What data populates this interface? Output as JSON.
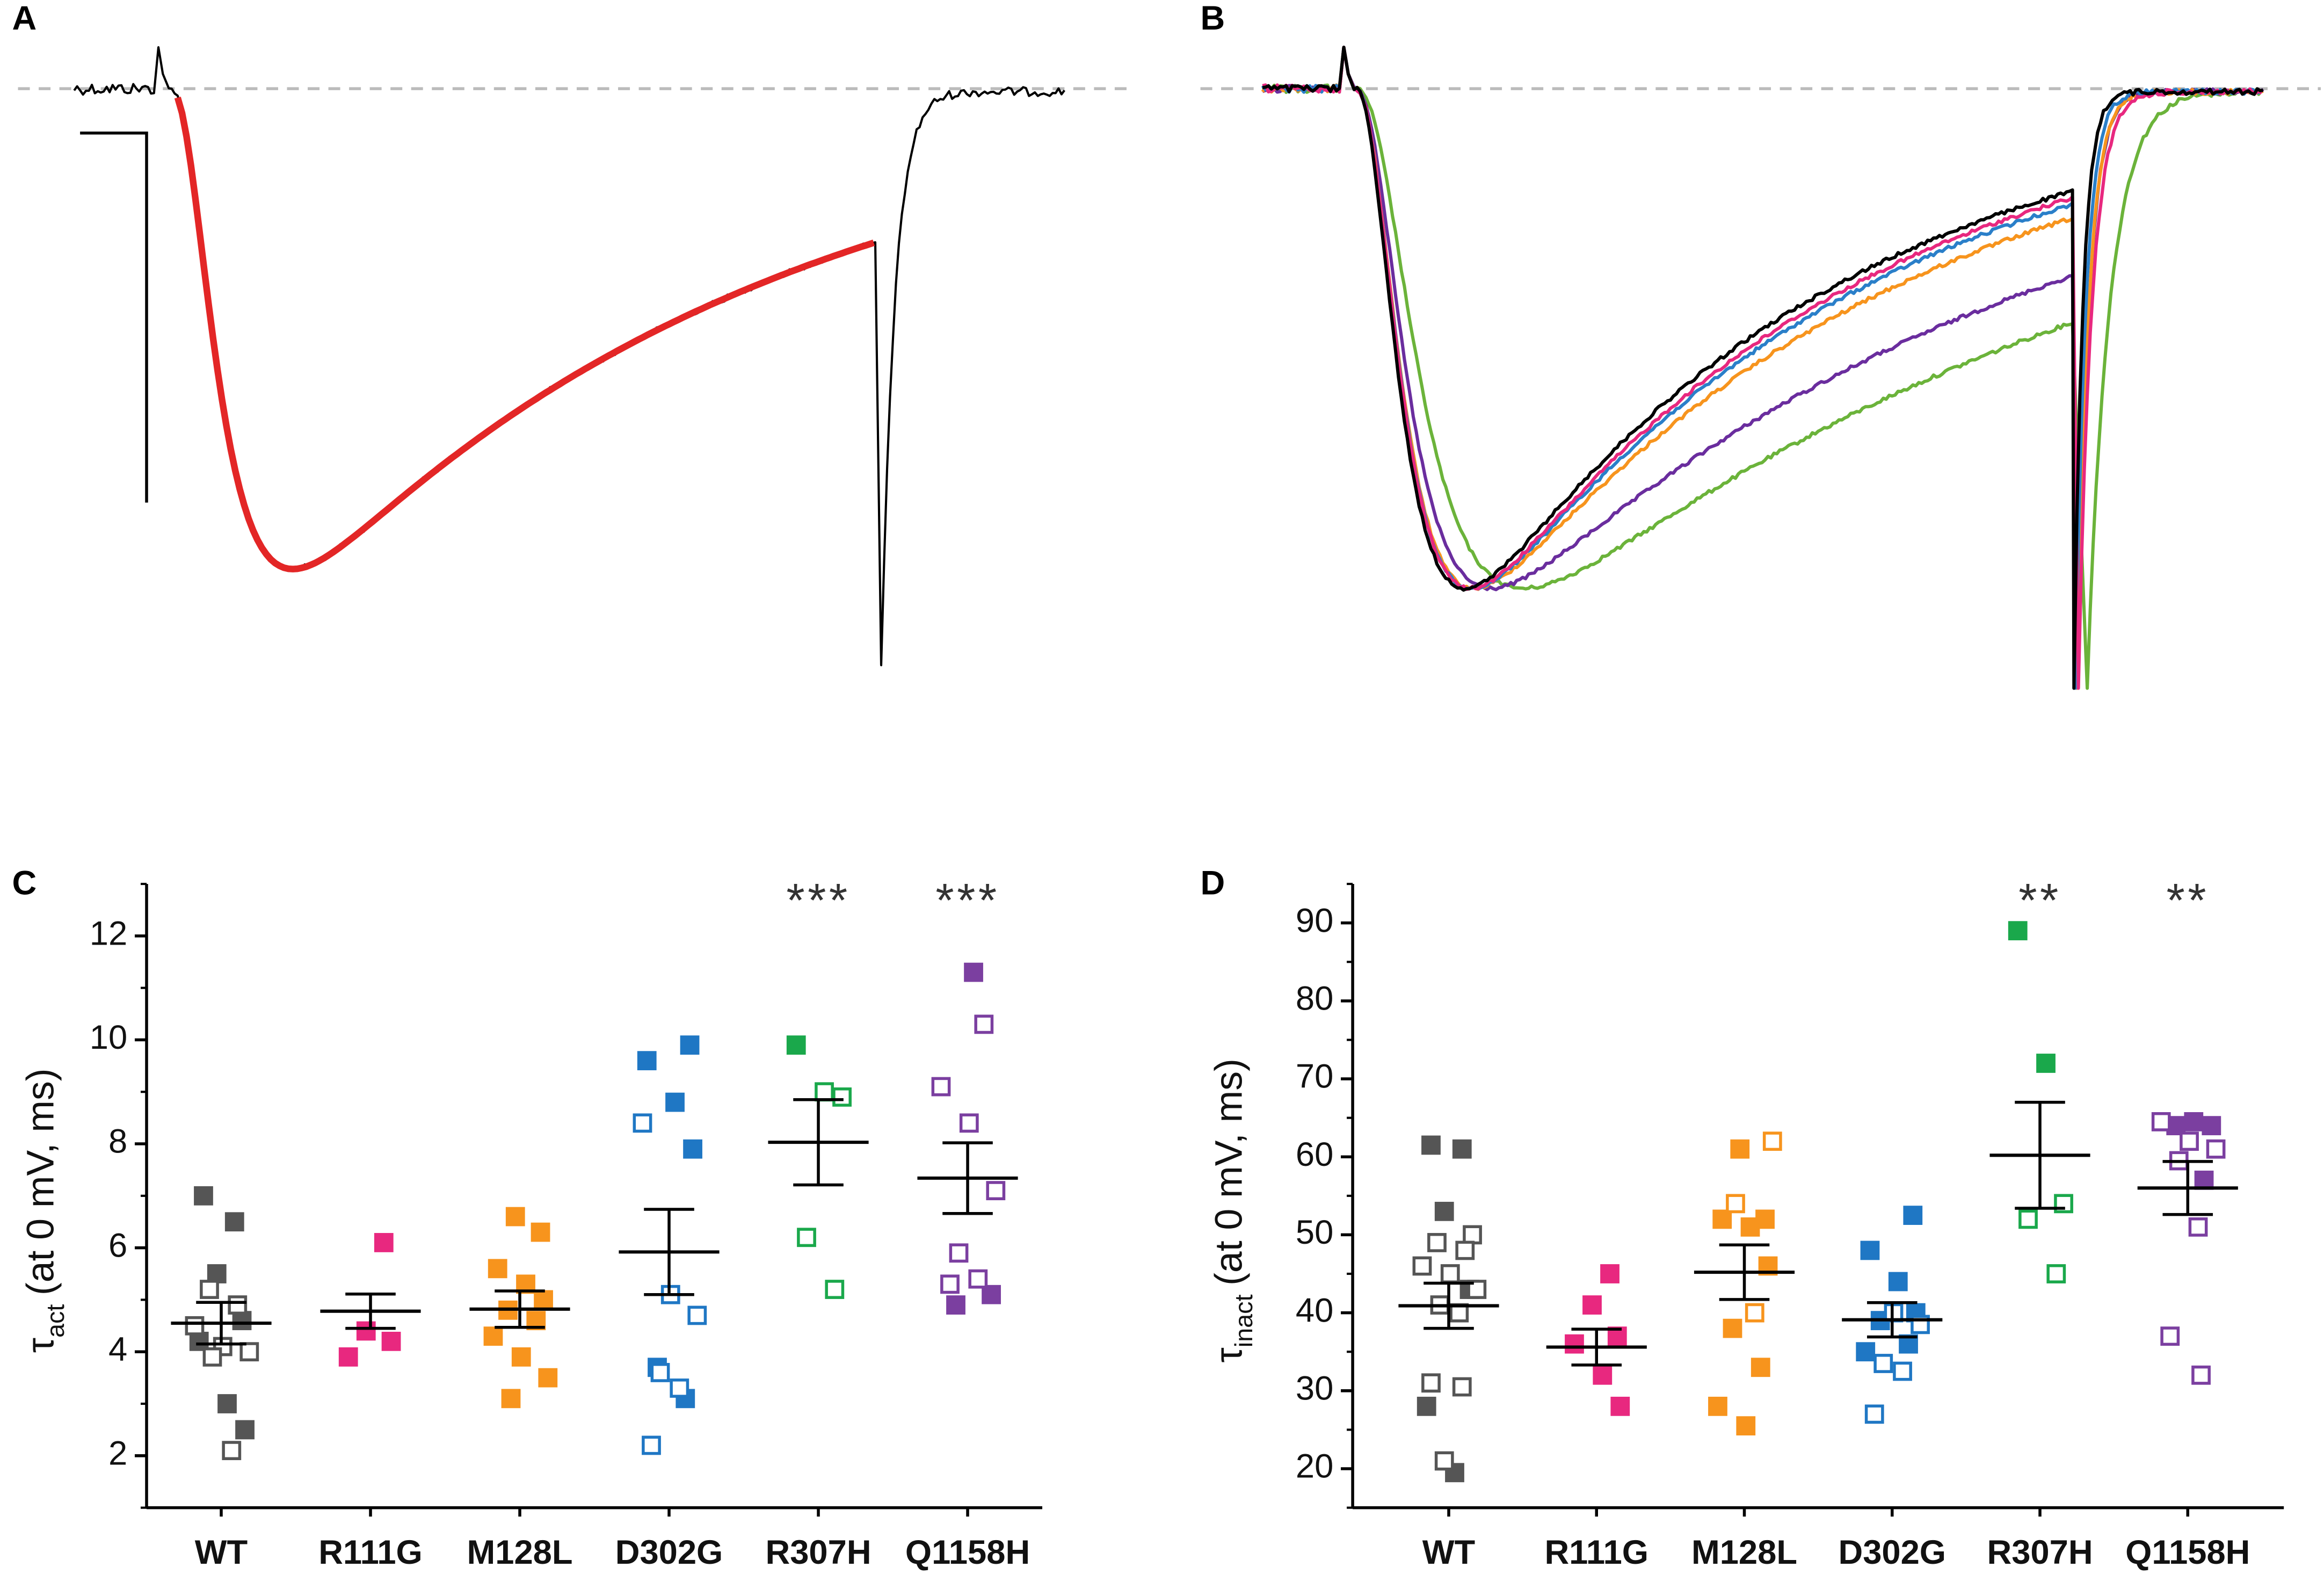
{
  "chart_data": [
    {
      "type": "trace",
      "panel": "A"
    },
    {
      "type": "trace",
      "panel": "B"
    },
    {
      "type": "dotplot",
      "panel": "C",
      "ylabel": {
        "symbol": "τ",
        "subscript": "act",
        "text": "(at 0 mV, ms)"
      },
      "ylim": [
        1,
        13
      ],
      "yticks": [
        2,
        4,
        6,
        8,
        10,
        12
      ],
      "yminor": [
        1,
        3,
        5,
        7,
        9,
        11,
        13
      ],
      "groups": [
        {
          "name": "WT",
          "color": "#555555",
          "filled": [
            7.0,
            6.5,
            5.5,
            4.6,
            4.2,
            3.0,
            2.5
          ],
          "open": [
            5.2,
            4.9,
            4.5,
            4.1,
            4.0,
            3.9,
            2.1
          ],
          "mean": 4.55,
          "sem": 0.4
        },
        {
          "name": "R111G",
          "color": "#e8287f",
          "filled": [
            6.1,
            4.4,
            4.2,
            3.9
          ],
          "open": [],
          "mean": 4.78,
          "sem": 0.33
        },
        {
          "name": "M128L",
          "color": "#f7941d",
          "filled": [
            6.6,
            6.3,
            5.6,
            5.3,
            5.0,
            4.8,
            4.6,
            4.3,
            3.9,
            3.5,
            3.1
          ],
          "open": [],
          "mean": 4.82,
          "sem": 0.35
        },
        {
          "name": "D302G",
          "color": "#1f77c4",
          "filled": [
            9.9,
            9.6,
            8.8,
            7.9,
            3.7,
            3.1
          ],
          "open": [
            8.4,
            5.1,
            4.7,
            3.6,
            3.3,
            2.2
          ],
          "mean": 5.92,
          "sem": 0.82
        },
        {
          "name": "R307H",
          "color": "#1aa84b",
          "filled": [
            9.9
          ],
          "open": [
            9.0,
            8.9,
            6.2,
            5.2
          ],
          "mean": 8.03,
          "sem": 0.82
        },
        {
          "name": "Q1158H",
          "color": "#7b3fa0",
          "filled": [
            11.3,
            5.1,
            4.9
          ],
          "open": [
            10.3,
            9.1,
            8.4,
            7.1,
            5.9,
            5.4,
            5.3
          ],
          "mean": 7.34,
          "sem": 0.68
        }
      ],
      "annotations": [
        {
          "group": "R307H",
          "text": "***"
        },
        {
          "group": "Q1158H",
          "text": "***"
        }
      ]
    },
    {
      "type": "dotplot",
      "panel": "D",
      "ylabel": {
        "symbol": "τ",
        "subscript": "inact",
        "text": "(at 0 mV, ms)"
      },
      "ylim": [
        15,
        95
      ],
      "yticks": [
        20,
        30,
        40,
        50,
        60,
        70,
        80,
        90
      ],
      "yminor": [
        15,
        25,
        35,
        45,
        55,
        65,
        75,
        85,
        95
      ],
      "groups": [
        {
          "name": "WT",
          "color": "#555555",
          "filled": [
            61.5,
            61,
            53,
            43,
            28,
            19.5
          ],
          "open": [
            50,
            49,
            48,
            46,
            45,
            43,
            41,
            40,
            31,
            30.5,
            21
          ],
          "mean": 40.9,
          "sem": 2.9
        },
        {
          "name": "R111G",
          "color": "#e8287f",
          "filled": [
            45,
            41,
            37,
            36,
            32,
            28
          ],
          "open": [],
          "mean": 35.6,
          "sem": 2.3
        },
        {
          "name": "M128L",
          "color": "#f7941d",
          "filled": [
            61,
            52,
            52,
            51,
            46,
            38,
            33,
            28,
            25.5
          ],
          "open": [
            62,
            54,
            40
          ],
          "mean": 45.2,
          "sem": 3.5
        },
        {
          "name": "D302G",
          "color": "#1f77c4",
          "filled": [
            52.5,
            48,
            44,
            40,
            39,
            36,
            35
          ],
          "open": [
            40,
            38.5,
            33.5,
            32.5,
            27
          ],
          "mean": 39.1,
          "sem": 2.2
        },
        {
          "name": "R307H",
          "color": "#1aa84b",
          "filled": [
            89,
            72
          ],
          "open": [
            54,
            52,
            45
          ],
          "mean": 60.2,
          "sem": 6.8
        },
        {
          "name": "Q1158H",
          "color": "#7b3fa0",
          "filled": [
            64.5,
            64,
            64,
            57
          ],
          "open": [
            64.5,
            62,
            61,
            59.5,
            51,
            37,
            32
          ],
          "mean": 56,
          "sem": 3.4
        }
      ],
      "annotations": [
        {
          "group": "R307H",
          "text": "**"
        },
        {
          "group": "Q1158H",
          "text": "**"
        }
      ]
    }
  ]
}
